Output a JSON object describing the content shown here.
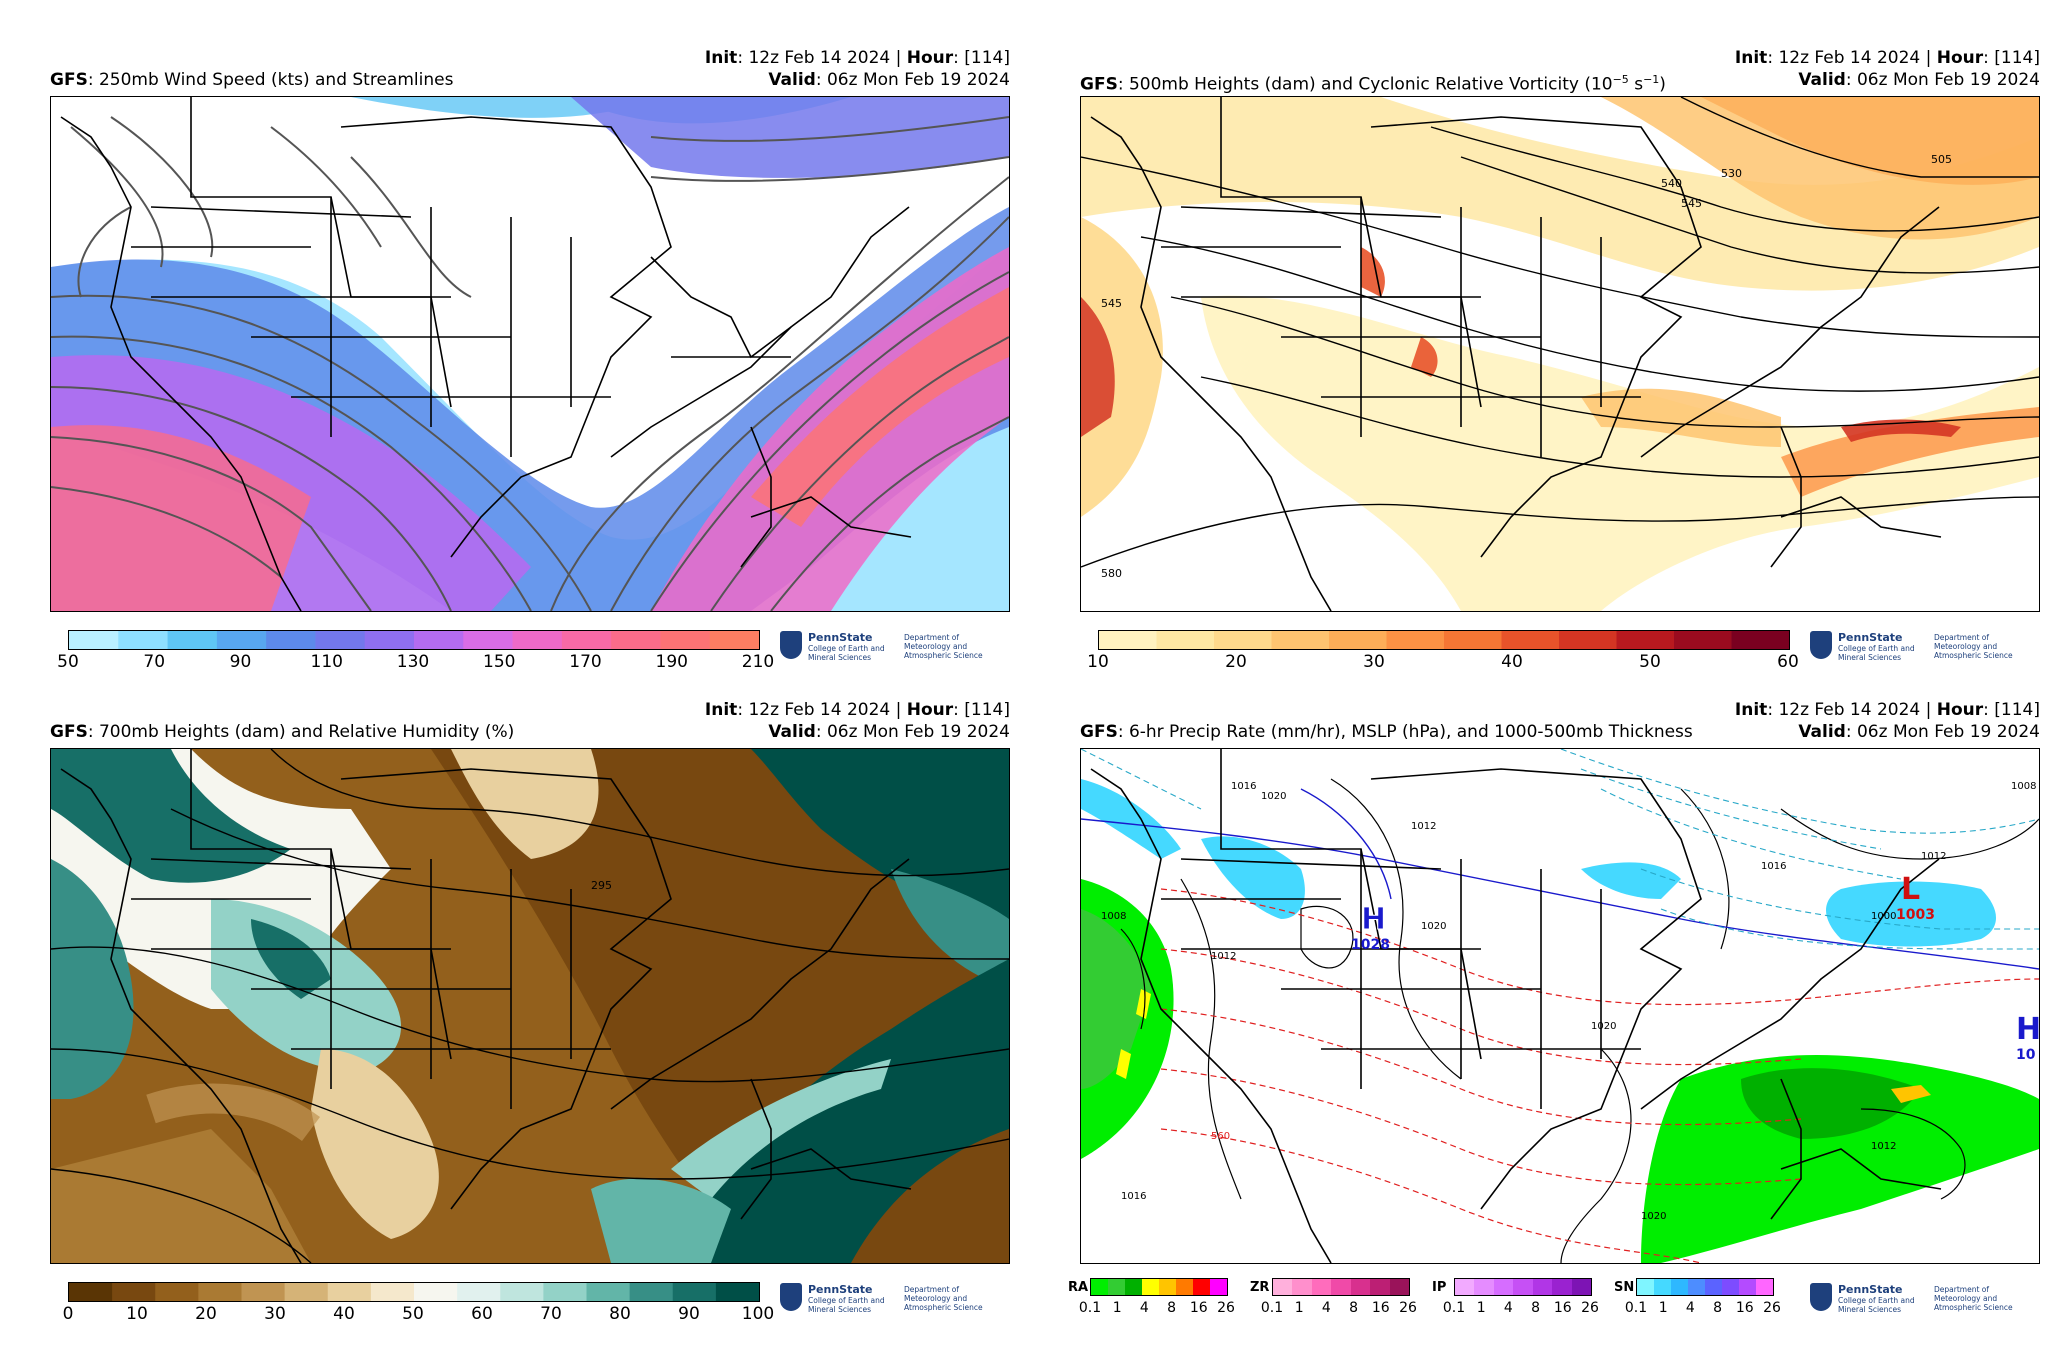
{
  "common": {
    "init_label": "Init",
    "init_value": ": 12z Feb 14 2024 | ",
    "hour_label": "Hour",
    "hour_value": ": [114]",
    "valid_label": "Valid",
    "valid_value": ": 06z Mon Feb 19 2024",
    "model_label": "GFS",
    "logo_name": "PennState",
    "logo_college": "College of Earth and Mineral Sciences",
    "logo_dept": "Department of Meteorology and Atmospheric Science"
  },
  "panels": [
    {
      "title": ": 250mb Wind Speed (kts) and Streamlines",
      "colorbar": {
        "ticks": [
          "50",
          "70",
          "90",
          "110",
          "130",
          "150",
          "170",
          "190",
          "210"
        ],
        "colors": [
          "#b9f0ff",
          "#8ee0ff",
          "#5fc6f5",
          "#58a7f0",
          "#5d8aea",
          "#7378ec",
          "#8f6ff0",
          "#b46cf0",
          "#d86de6",
          "#ee6ac8",
          "#f86aa6",
          "#fb6c8a",
          "#fc7375",
          "#fd7e62"
        ]
      },
      "contour_labels": []
    },
    {
      "title": ": 500mb Heights (dam) and Cyclonic Relative Vorticity (10",
      "title_sup": "−5",
      "title_mid": " s",
      "title_sup2": "−1",
      "title_end": ")",
      "colorbar": {
        "ticks": [
          "10",
          "20",
          "30",
          "40",
          "50",
          "60"
        ],
        "colors": [
          "#fff3c0",
          "#fee8a4",
          "#fed98c",
          "#fec470",
          "#fdae58",
          "#fc9244",
          "#f67634",
          "#e8532a",
          "#d43523",
          "#b8191f",
          "#9a0b1f",
          "#7a0020"
        ]
      },
      "contour_labels": [
        "505",
        "530",
        "540",
        "545",
        "545",
        "580"
      ]
    },
    {
      "title": ": 700mb Heights (dam) and Relative Humidity (%)",
      "colorbar": {
        "ticks": [
          "0",
          "10",
          "20",
          "30",
          "40",
          "50",
          "60",
          "70",
          "80",
          "90",
          "100"
        ],
        "colors": [
          "#5a3505",
          "#784810",
          "#93601c",
          "#aa7a33",
          "#c09452",
          "#d5b377",
          "#e8d09f",
          "#f5e8cc",
          "#f6f6ef",
          "#e1f1ee",
          "#bfe5de",
          "#93d2c7",
          "#62b5a8",
          "#378f86",
          "#176f67",
          "#004f47"
        ]
      },
      "contour_labels": [
        "295"
      ]
    },
    {
      "title": ": 6-hr Precip Rate (mm/hr), MSLP (hPa), and 1000-500mb Thickness",
      "precip_types": [
        {
          "label": "RA",
          "colors": [
            "#00ee00",
            "#33cc33",
            "#00b000",
            "#ffff00",
            "#ffc400",
            "#ff7a00",
            "#ff0000",
            "#ff00ff"
          ]
        },
        {
          "label": "ZR",
          "colors": [
            "#ffb0dc",
            "#ff8fcc",
            "#ff6cbc",
            "#f04aa8",
            "#d8308e",
            "#bc1f74",
            "#9a135a"
          ]
        },
        {
          "label": "IP",
          "colors": [
            "#f2aaff",
            "#e58cff",
            "#d66dff",
            "#c650f5",
            "#b136e6",
            "#9a22d0",
            "#7d14b4"
          ]
        },
        {
          "label": "SN",
          "colors": [
            "#7ff5ff",
            "#45d9ff",
            "#2eb8ff",
            "#4d8dff",
            "#5b63ff",
            "#7d4cff",
            "#b44bff",
            "#ff66ff"
          ]
        }
      ],
      "precip_ticks": [
        "0.1",
        "1",
        "4",
        "8",
        "16",
        "26"
      ],
      "contour_labels": [
        "1016",
        "1020",
        "1012",
        "1020",
        "1008",
        "1012",
        "1020",
        "1016",
        "1016",
        "1012",
        "1012",
        "1020",
        "560",
        "1000",
        "1008"
      ],
      "highs": [
        {
          "sym": "H",
          "val": "1028"
        },
        {
          "sym": "H",
          "val": "10"
        }
      ],
      "lows": [
        {
          "sym": "L",
          "val": "1003"
        }
      ]
    }
  ]
}
